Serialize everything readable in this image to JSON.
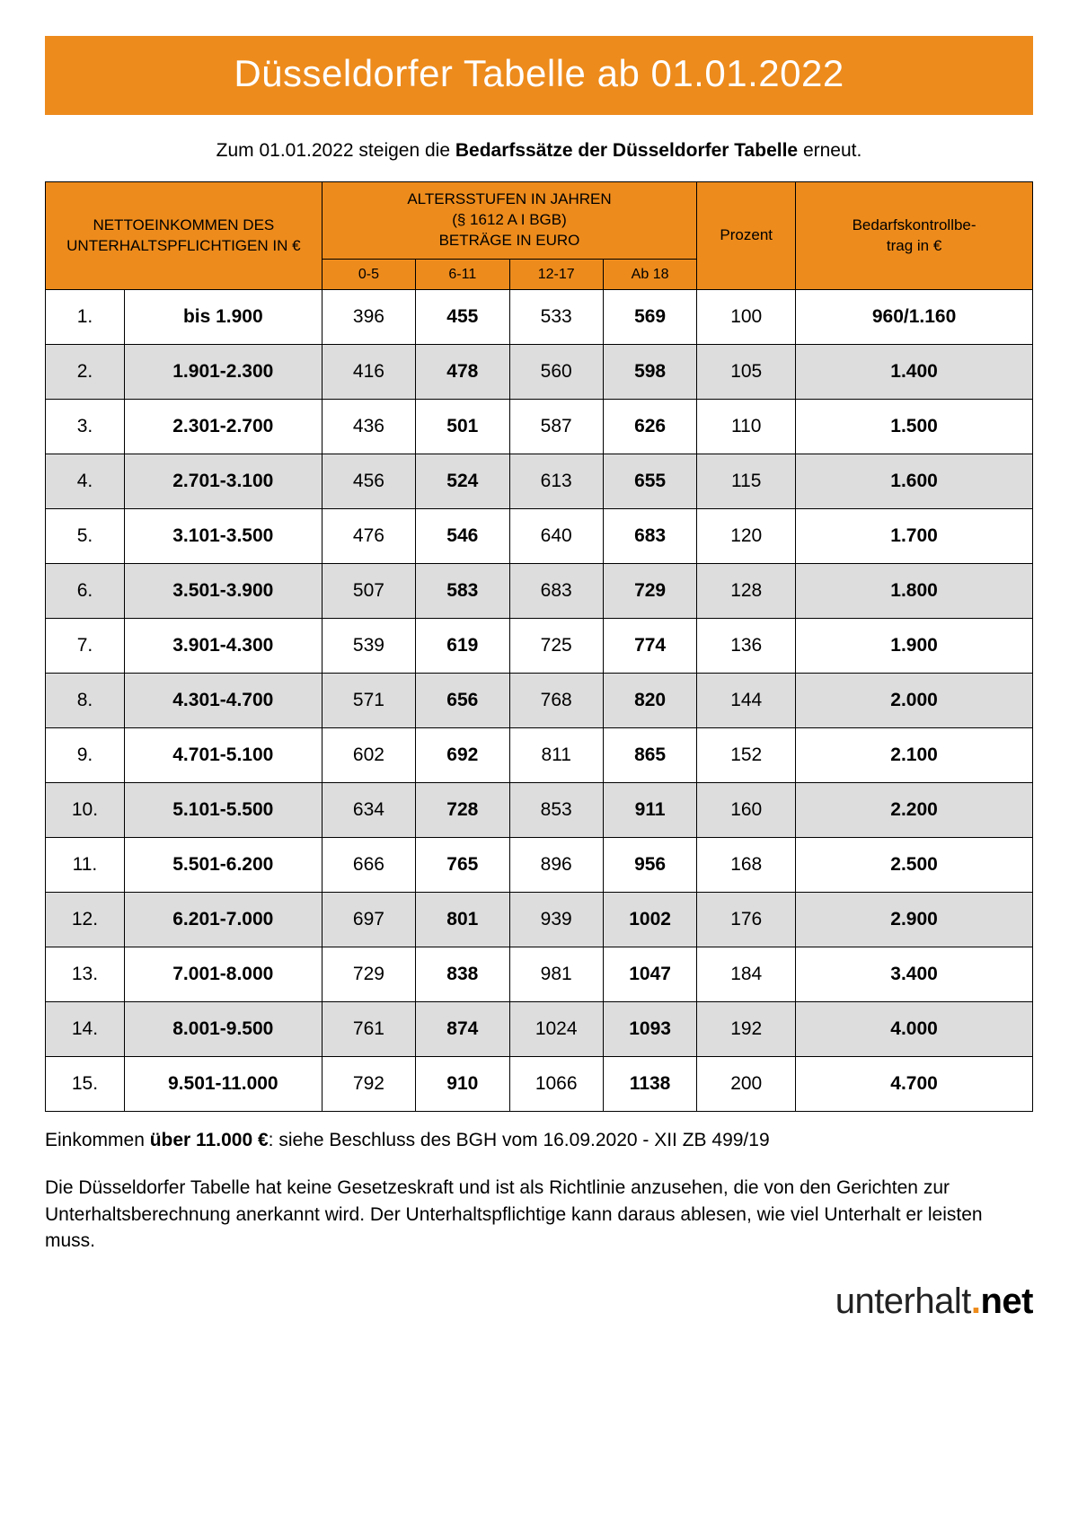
{
  "colors": {
    "accent": "#ed8b1c",
    "row_alt": "#dddddd",
    "border": "#000000",
    "text": "#000000",
    "bg": "#ffffff"
  },
  "title": "Düsseldorfer Tabelle ab 01.01.2022",
  "intro_pre": "Zum 01.01.2022 steigen die ",
  "intro_bold": "Bedarfssätze der Düsseldorfer Tabelle",
  "intro_post": " erneut.",
  "header": {
    "income": "NETTOEINKOMMEN DES UNTERHALTSPFLICHTIGEN IN €",
    "ages_title": "ALTERSSTUFEN IN JAHREN\n(§ 1612 A I BGB)\nBETRÄGE IN EURO",
    "age_cols": [
      "0-5",
      "6-11",
      "12-17",
      "Ab 18"
    ],
    "percent": "Prozent",
    "control": "Bedarfskontrollbe-\ntrag in €"
  },
  "rows": [
    {
      "n": "1.",
      "income": "bis 1.900",
      "a0": "396",
      "a1": "455",
      "a2": "533",
      "a3": "569",
      "pct": "100",
      "ctrl": "960/1.160"
    },
    {
      "n": "2.",
      "income": "1.901-2.300",
      "a0": "416",
      "a1": "478",
      "a2": "560",
      "a3": "598",
      "pct": "105",
      "ctrl": "1.400"
    },
    {
      "n": "3.",
      "income": "2.301-2.700",
      "a0": "436",
      "a1": "501",
      "a2": "587",
      "a3": "626",
      "pct": "110",
      "ctrl": "1.500"
    },
    {
      "n": "4.",
      "income": "2.701-3.100",
      "a0": "456",
      "a1": "524",
      "a2": "613",
      "a3": "655",
      "pct": "115",
      "ctrl": "1.600"
    },
    {
      "n": "5.",
      "income": "3.101-3.500",
      "a0": "476",
      "a1": "546",
      "a2": "640",
      "a3": "683",
      "pct": "120",
      "ctrl": "1.700"
    },
    {
      "n": "6.",
      "income": "3.501-3.900",
      "a0": "507",
      "a1": "583",
      "a2": "683",
      "a3": "729",
      "pct": "128",
      "ctrl": "1.800"
    },
    {
      "n": "7.",
      "income": "3.901-4.300",
      "a0": "539",
      "a1": "619",
      "a2": "725",
      "a3": "774",
      "pct": "136",
      "ctrl": "1.900"
    },
    {
      "n": "8.",
      "income": "4.301-4.700",
      "a0": "571",
      "a1": "656",
      "a2": "768",
      "a3": "820",
      "pct": "144",
      "ctrl": "2.000"
    },
    {
      "n": "9.",
      "income": "4.701-5.100",
      "a0": "602",
      "a1": "692",
      "a2": "811",
      "a3": "865",
      "pct": "152",
      "ctrl": "2.100"
    },
    {
      "n": "10.",
      "income": "5.101-5.500",
      "a0": "634",
      "a1": "728",
      "a2": "853",
      "a3": "911",
      "pct": "160",
      "ctrl": "2.200"
    },
    {
      "n": "11.",
      "income": "5.501-6.200",
      "a0": "666",
      "a1": "765",
      "a2": "896",
      "a3": "956",
      "pct": "168",
      "ctrl": "2.500"
    },
    {
      "n": "12.",
      "income": "6.201-7.000",
      "a0": "697",
      "a1": "801",
      "a2": "939",
      "a3": "1002",
      "pct": "176",
      "ctrl": "2.900"
    },
    {
      "n": "13.",
      "income": "7.001-8.000",
      "a0": "729",
      "a1": "838",
      "a2": "981",
      "a3": "1047",
      "pct": "184",
      "ctrl": "3.400"
    },
    {
      "n": "14.",
      "income": "8.001-9.500",
      "a0": "761",
      "a1": "874",
      "a2": "1024",
      "a3": "1093",
      "pct": "192",
      "ctrl": "4.000"
    },
    {
      "n": "15.",
      "income": "9.501-11.000",
      "a0": "792",
      "a1": "910",
      "a2": "1066",
      "a3": "1138",
      "pct": "200",
      "ctrl": "4.700"
    }
  ],
  "footer1_pre": "Einkommen ",
  "footer1_bold": "über 11.000 €",
  "footer1_post": ": siehe Beschluss des BGH vom 16.09.2020 - XII ZB 499/19",
  "footer2": "Die Düsseldorfer Tabelle hat keine Gesetzeskraft und ist als Richtlinie anzusehen, die von den Gerichten zur Unterhaltsberechnung anerkannt wird. Der Unterhaltspflichtige kann daraus ablesen, wie viel Unterhalt er leisten muss.",
  "brand": {
    "name": "unterhalt",
    "dot": ".",
    "tld": "net"
  }
}
